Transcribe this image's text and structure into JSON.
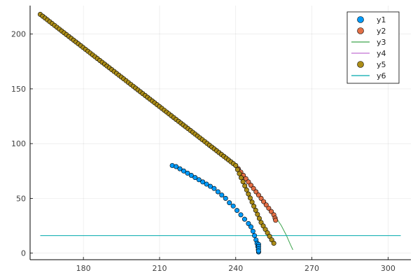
{
  "chart_data": {
    "type": "scatter",
    "xlim": [
      159,
      309
    ],
    "ylim": [
      -6,
      226
    ],
    "x_ticks": [
      180,
      210,
      240,
      270,
      300
    ],
    "y_ticks": [
      0,
      50,
      100,
      150,
      200
    ],
    "grid": true,
    "legend_position": "top-right",
    "series": [
      {
        "name": "y1",
        "kind": "scatter",
        "color": "#009af9",
        "points": [
          [
            215.0,
            80
          ],
          [
            216.5,
            79
          ],
          [
            218,
            77
          ],
          [
            219.5,
            75
          ],
          [
            221,
            73
          ],
          [
            222.5,
            71
          ],
          [
            224,
            69
          ],
          [
            225.5,
            67
          ],
          [
            227,
            65
          ],
          [
            228.5,
            63
          ],
          [
            230,
            61
          ],
          [
            231.5,
            59
          ],
          [
            233,
            56
          ],
          [
            234.5,
            53
          ],
          [
            236,
            50
          ],
          [
            237.5,
            46
          ],
          [
            239,
            43
          ],
          [
            240.5,
            39
          ],
          [
            242,
            35
          ],
          [
            243.5,
            31
          ],
          [
            245,
            27
          ],
          [
            246,
            24
          ],
          [
            246.8,
            20
          ],
          [
            247.4,
            16
          ],
          [
            248,
            12
          ],
          [
            248.4,
            9
          ],
          [
            248.7,
            6
          ],
          [
            248.9,
            3
          ],
          [
            249,
            1
          ]
        ]
      },
      {
        "name": "y2",
        "kind": "scatter",
        "color": "#e26f46",
        "points": [
          [
            240,
            80
          ],
          [
            241,
            77
          ],
          [
            242,
            74
          ],
          [
            243,
            71
          ],
          [
            244,
            68
          ],
          [
            245,
            65
          ],
          [
            246,
            62
          ],
          [
            247,
            59
          ],
          [
            248,
            56
          ],
          [
            249,
            53
          ],
          [
            250,
            50
          ],
          [
            251,
            47
          ],
          [
            252,
            44
          ],
          [
            253,
            41
          ],
          [
            254,
            38
          ],
          [
            255,
            35
          ],
          [
            255.5,
            32
          ],
          [
            255.7,
            30
          ]
        ]
      },
      {
        "name": "y3",
        "kind": "line",
        "color": "#3da44d",
        "points": [
          [
            240,
            80
          ],
          [
            242,
            74
          ],
          [
            244,
            68
          ],
          [
            246,
            62
          ],
          [
            248,
            56
          ],
          [
            250,
            50
          ],
          [
            252,
            44
          ],
          [
            254,
            38
          ],
          [
            256,
            32
          ],
          [
            258,
            25
          ],
          [
            260,
            16
          ],
          [
            261.5,
            8
          ],
          [
            262.5,
            3
          ]
        ]
      },
      {
        "name": "y4",
        "kind": "line",
        "color": "#c271d2",
        "points": []
      },
      {
        "name": "y5",
        "kind": "scatter",
        "color": "#ac8d18",
        "points": [
          [
            163,
            218
          ],
          [
            255,
            9
          ]
        ]
      },
      {
        "name": "y6",
        "kind": "line",
        "color": "#00a9ad",
        "points": [
          [
            163,
            16
          ],
          [
            305,
            16
          ]
        ]
      }
    ]
  }
}
